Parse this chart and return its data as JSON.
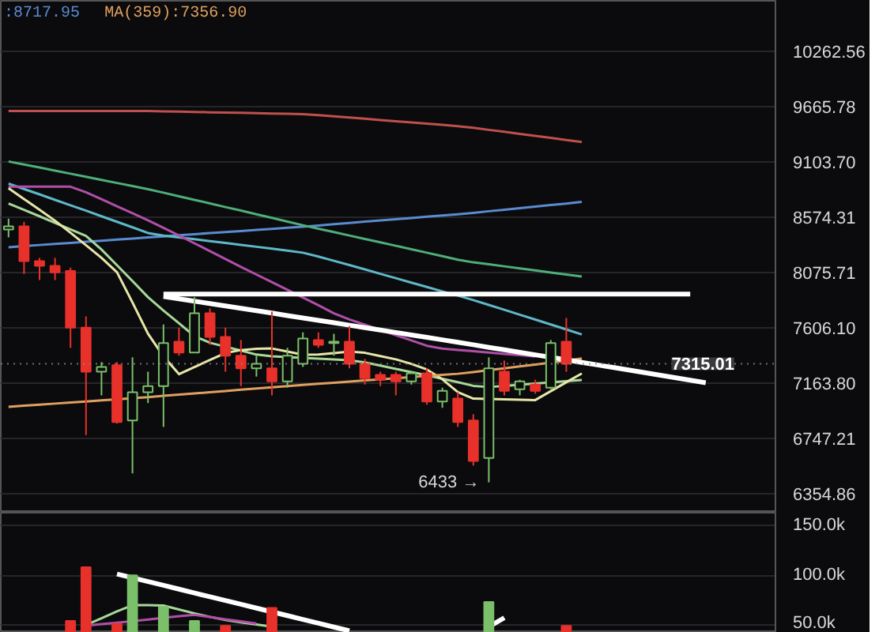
{
  "chart_data": [
    {
      "type": "candlestick",
      "categories": [
        null,
        null,
        null,
        null,
        null,
        null,
        null,
        null,
        null,
        null,
        null,
        null,
        null,
        null,
        null,
        null,
        null,
        null,
        null,
        null,
        null,
        null,
        null,
        null,
        null,
        null,
        null,
        null,
        null,
        null,
        null,
        null,
        null,
        null,
        null,
        null,
        null,
        null,
        null,
        null,
        null,
        null,
        null,
        null,
        null,
        null,
        null,
        null,
        null,
        null
      ],
      "ohlc": [
        [
          8460,
          8560,
          8389,
          8489
        ],
        [
          8489,
          8531,
          8062,
          8176
        ],
        [
          8176,
          8204,
          8009,
          8133
        ],
        [
          8133,
          8204,
          8009,
          8076
        ],
        [
          8089,
          8118,
          7442,
          7606
        ],
        [
          7606,
          7700,
          6771,
          7252
        ],
        [
          7252,
          7328,
          7069,
          7290
        ],
        [
          7303,
          7328,
          6855,
          6867
        ],
        [
          6879,
          7366,
          6496,
          7093
        ],
        [
          7093,
          7252,
          7010,
          7140
        ],
        [
          7140,
          7633,
          6831,
          7480
        ],
        [
          7492,
          7606,
          7379,
          7404
        ],
        [
          7404,
          7861,
          7404,
          7727
        ],
        [
          7727,
          7767,
          7467,
          7530
        ],
        [
          7530,
          7606,
          7252,
          7379
        ],
        [
          7379,
          7505,
          7140,
          7278
        ],
        [
          7278,
          7379,
          7214,
          7315
        ],
        [
          7278,
          7740,
          7069,
          7176
        ],
        [
          7176,
          7442,
          7128,
          7379
        ],
        [
          7315,
          7568,
          7290,
          7518
        ],
        [
          7505,
          7568,
          7442,
          7467
        ],
        [
          7480,
          7556,
          7379,
          7492
        ],
        [
          7492,
          7620,
          7278,
          7315
        ],
        [
          7315,
          7353,
          7152,
          7202
        ],
        [
          7227,
          7252,
          7140,
          7189
        ],
        [
          7227,
          7252,
          7069,
          7176
        ],
        [
          7176,
          7252,
          7152,
          7240
        ],
        [
          7240,
          7278,
          6998,
          7021
        ],
        [
          7021,
          7128,
          6974,
          7104
        ],
        [
          7045,
          7093,
          6831,
          6867
        ],
        [
          6879,
          6926,
          6551,
          6584
        ],
        [
          6605,
          7366,
          6433,
          7278
        ],
        [
          7252,
          7340,
          7069,
          7104
        ],
        [
          7116,
          7189,
          7069,
          7176
        ],
        [
          7152,
          7189,
          7081,
          7104
        ],
        [
          7128,
          7505,
          7116,
          7480
        ],
        [
          7492,
          7687,
          7252,
          7315.01
        ],
        null,
        null,
        null,
        null,
        null,
        null,
        null,
        null,
        null,
        null,
        null,
        null,
        null
      ],
      "colors": [
        "#7bbf6a",
        "#e8312a",
        "#e8312a",
        "#e8312a",
        "#e8312a",
        "#e8312a",
        "#7bbf6a",
        "#e8312a",
        "#7bbf6a",
        "#7bbf6a",
        "#7bbf6a",
        "#e8312a",
        "#7bbf6a",
        "#e8312a",
        "#e8312a",
        "#e8312a",
        "#7bbf6a",
        "#e8312a",
        "#7bbf6a",
        "#7bbf6a",
        "#e8312a",
        "#7bbf6a",
        "#e8312a",
        "#e8312a",
        "#e8312a",
        "#e8312a",
        "#7bbf6a",
        "#e8312a",
        "#7bbf6a",
        "#e8312a",
        "#e8312a",
        "#7bbf6a",
        "#e8312a",
        "#7bbf6a",
        "#e8312a",
        "#7bbf6a",
        "#e8312a",
        null,
        null,
        null,
        null,
        null,
        null,
        null,
        null,
        null,
        null,
        null,
        null,
        null
      ],
      "ylim": [
        6225,
        10838
      ],
      "log": "y",
      "yticks": [
        {
          "value": 6354.86,
          "label": "6354.86"
        },
        {
          "value": 6747.21,
          "label": "6747.21"
        },
        {
          "value": 7163.8,
          "label": "7163.80"
        },
        {
          "value": 7606.1,
          "label": "7606.10"
        },
        {
          "value": 8075.71,
          "label": "8075.71"
        },
        {
          "value": 8574.31,
          "label": "8574.31"
        },
        {
          "value": 9103.7,
          "label": "9103.70"
        },
        {
          "value": 9665.78,
          "label": "9665.78"
        },
        {
          "value": 10262.56,
          "label": "10262.56"
        }
      ],
      "grid": "y",
      "tick_labels": "y",
      "series": [
        {
          "type": "line",
          "color": "#c0504d",
          "values": [
            9618,
            9618,
            9618,
            9618,
            9618,
            9618,
            9618,
            9618,
            9618,
            9618,
            9615,
            9612,
            9609,
            9605,
            9602,
            9599,
            9595,
            9592,
            9589,
            9586,
            9576,
            9563,
            9551,
            9538,
            9525,
            9513,
            9500,
            9487,
            9475,
            9462,
            9445,
            9424,
            9404,
            9383,
            9362,
            9342,
            9321,
            9300,
            null,
            null,
            null,
            null,
            null,
            null,
            null,
            null,
            null,
            null,
            null,
            null
          ]
        },
        {
          "type": "line",
          "name": ":8717.95",
          "color": "#5b8bd0",
          "values": [
            8299,
            8309,
            8319,
            8328,
            8338,
            8348,
            8358,
            8368,
            8377,
            8387,
            8397,
            8407,
            8417,
            8427,
            8437,
            8446,
            8456,
            8466,
            8476,
            8486,
            8497,
            8509,
            8520,
            8532,
            8543,
            8555,
            8566,
            8578,
            8589,
            8600,
            8614,
            8629,
            8643,
            8658,
            8672,
            8687,
            8701,
            8717.95,
            null,
            null,
            null,
            null,
            null,
            null,
            null,
            null,
            null,
            null,
            null,
            null
          ]
        },
        {
          "type": "line",
          "color": "#4fae7a",
          "values": [
            9107,
            9077,
            9047,
            9017,
            8987,
            8957,
            8927,
            8897,
            8867,
            8837,
            8804,
            8770,
            8736,
            8702,
            8668,
            8635,
            8601,
            8567,
            8533,
            8499,
            8467,
            8436,
            8405,
            8374,
            8343,
            8312,
            8281,
            8250,
            8219,
            8187,
            8164,
            8147,
            8129,
            8111,
            8093,
            8075,
            8057,
            8040,
            null,
            null,
            null,
            null,
            null,
            null,
            null,
            null,
            null,
            null,
            null,
            null
          ]
        },
        {
          "type": "line",
          "color": "#5fb8c8",
          "values": [
            8891,
            8839,
            8788,
            8736,
            8685,
            8634,
            8582,
            8531,
            8480,
            8428,
            8404,
            8388,
            8371,
            8354,
            8337,
            8320,
            8303,
            8286,
            8269,
            8250,
            8216,
            8178,
            8140,
            8102,
            8063,
            8025,
            7987,
            7949,
            7911,
            7876,
            7837,
            7796,
            7755,
            7714,
            7674,
            7633,
            7592,
            7551,
            null,
            null,
            null,
            null,
            null,
            null,
            null,
            null,
            null,
            null,
            null,
            null
          ]
        },
        {
          "type": "line",
          "color": "#b04fa8",
          "values": [
            8861,
            8861,
            8861,
            8861,
            8861,
            8808,
            8742,
            8676,
            8610,
            8544,
            8475,
            8405,
            8334,
            8264,
            8194,
            8124,
            8057,
            7991,
            7925,
            7859,
            7793,
            7726,
            7674,
            7631,
            7588,
            7545,
            7502,
            7459,
            7436,
            7425,
            7415,
            7404,
            7394,
            7384,
            7373,
            null,
            7352,
            7342,
            null,
            null,
            null,
            null,
            null,
            null,
            null,
            null,
            null,
            null,
            null,
            null
          ]
        },
        {
          "type": "line",
          "color": "#a8d89a",
          "values": [
            8702,
            8642,
            8582,
            8521,
            8461,
            8401,
            8278,
            8139,
            8001,
            7862,
            7749,
            7643,
            7537,
            7483,
            7451,
            7420,
            7388,
            7375,
            7368,
            7362,
            7355,
            7349,
            7343,
            7325,
            7300,
            7274,
            7249,
            7224,
            7197,
            7170,
            7142,
            7133,
            7142,
            7151,
            7160,
            7169,
            7178,
            7187,
            null,
            null,
            null,
            null,
            null,
            null,
            null,
            null,
            null,
            null,
            null,
            null
          ]
        },
        {
          "type": "line",
          "color": "#e8e6a8",
          "values": [
            8846,
            8744,
            8643,
            8541,
            8430,
            8317,
            8204,
            8077,
            7817,
            7557,
            7374,
            7233,
            7289,
            7345,
            7401,
            7424,
            7434,
            7437,
            7412,
            7387,
            7388,
            7400,
            7412,
            7402,
            7376,
            7350,
            7314,
            7270,
            7193,
            7094,
            7044,
            7041,
            7038,
            7036,
            7033,
            7101,
            7170,
            7238,
            null,
            null,
            null,
            null,
            null,
            null,
            null,
            null,
            null,
            null,
            null,
            null
          ]
        },
        {
          "type": "line",
          "name": "MA(359):7356.90",
          "color": "#e0a060",
          "values": [
            6981,
            6990,
            6998,
            7006,
            7014,
            7022,
            7031,
            7039,
            7047,
            7055,
            7065,
            7074,
            7083,
            7093,
            7102,
            7112,
            7121,
            7130,
            7140,
            7149,
            7158,
            7166,
            7175,
            7184,
            7192,
            7201,
            7210,
            7219,
            7227,
            7236,
            7249,
            7264,
            7279,
            7294,
            7309,
            7324,
            7339,
            7356.9,
            null,
            null,
            null,
            null,
            null,
            null,
            null,
            null,
            null,
            null,
            null,
            null
          ]
        },
        {
          "type": "line",
          "color": "#ffffff",
          "values": [
            null,
            null,
            null,
            null,
            null,
            null,
            null,
            null,
            null,
            null,
            7888,
            7888,
            7888,
            7888,
            7888,
            7888,
            7888,
            7888,
            7888,
            7888,
            7888,
            7888,
            7888,
            7888,
            7888,
            7888,
            7888,
            7888,
            7888,
            7888,
            7888,
            7888,
            7888,
            7888,
            7888,
            7888,
            7888,
            7888,
            7888,
            7888,
            7888,
            7888,
            7888,
            7888,
            7888,
            null,
            null,
            null,
            null,
            null
          ]
        },
        {
          "type": "line",
          "color": "#ffffff",
          "values": [
            null,
            null,
            null,
            null,
            null,
            null,
            null,
            null,
            null,
            null,
            7868,
            7848,
            7828,
            7808,
            7788,
            7768,
            7748,
            7728,
            7707,
            7687,
            7667,
            7647,
            7627,
            7607,
            7587,
            7567,
            7547,
            7527,
            7507,
            7487,
            7467,
            7446,
            7426,
            7406,
            7386,
            7366,
            7346,
            7326,
            7306,
            7286,
            7266,
            7246,
            7226,
            7206,
            7186,
            7166,
            null,
            null,
            null,
            null
          ]
        }
      ],
      "ref_lines": [
        {
          "axis": "y",
          "value": 7315.01,
          "label": "7315.01"
        }
      ],
      "annotations": [
        "6433 →"
      ]
    },
    {
      "type": "bar",
      "categories": [
        null,
        null,
        null,
        null,
        null,
        null,
        null,
        null,
        null,
        null,
        null,
        null,
        null,
        null,
        null,
        null,
        null,
        null,
        null,
        null,
        null,
        null,
        null,
        null,
        null,
        null,
        null,
        null,
        null,
        null,
        null,
        null,
        null,
        null,
        null,
        null,
        null,
        null,
        null,
        null,
        null,
        null,
        null,
        null,
        null,
        null,
        null,
        null,
        null,
        null
      ],
      "values": [
        null,
        null,
        null,
        null,
        54000,
        108000,
        null,
        51000,
        100000,
        null,
        68000,
        null,
        54000,
        null,
        49000,
        null,
        null,
        67000,
        null,
        null,
        null,
        null,
        null,
        null,
        null,
        null,
        null,
        null,
        null,
        null,
        null,
        73000,
        null,
        null,
        null,
        null,
        49000,
        null,
        null,
        null,
        null,
        null,
        null,
        null,
        null,
        null,
        null,
        null,
        null,
        null
      ],
      "colors": [
        null,
        null,
        null,
        null,
        "#e8312a",
        "#e8312a",
        null,
        "#e8312a",
        "#7bbf6a",
        null,
        "#7bbf6a",
        null,
        "#7bbf6a",
        null,
        "#e8312a",
        null,
        null,
        "#e8312a",
        null,
        null,
        null,
        null,
        null,
        null,
        null,
        null,
        null,
        null,
        null,
        null,
        null,
        "#7bbf6a",
        null,
        null,
        null,
        null,
        "#e8312a",
        null,
        null,
        null,
        null,
        null,
        null,
        null,
        null,
        null,
        null,
        null,
        null,
        null
      ],
      "ylim": [
        42000,
        163000
      ],
      "yticks": [
        {
          "value": 50000,
          "label": "50.0k"
        },
        {
          "value": 100000,
          "label": "100.0k"
        },
        {
          "value": 150000,
          "label": "150.0k"
        }
      ],
      "grid": "y",
      "tick_labels": "y",
      "series": [
        {
          "type": "line",
          "color": "#a8d89a",
          "values": [
            null,
            null,
            null,
            null,
            null,
            49900,
            56700,
            63600,
            69800,
            69800,
            69400,
            65500,
            61600,
            58000,
            55000,
            52500,
            50400,
            48200,
            null,
            null,
            null,
            null,
            null,
            null,
            null,
            null,
            null,
            null,
            null,
            null,
            null,
            null,
            null,
            null,
            null,
            null,
            null,
            null,
            null,
            null,
            null,
            null,
            null,
            null,
            null,
            null,
            null,
            null,
            null,
            null
          ]
        },
        {
          "type": "line",
          "color": "#b04fa8",
          "values": [
            null,
            null,
            null,
            null,
            null,
            49200,
            50700,
            52200,
            53700,
            55400,
            57100,
            58800,
            60100,
            57900,
            55600,
            53500,
            51400,
            null,
            null,
            null,
            null,
            null,
            null,
            null,
            null,
            null,
            null,
            null,
            null,
            null,
            null,
            null,
            null,
            null,
            null,
            null,
            null,
            null,
            null,
            null,
            null,
            null,
            null,
            null,
            null,
            null,
            null,
            null,
            null,
            null
          ]
        },
        {
          "type": "line",
          "color": "#ffffff",
          "values": [
            null,
            null,
            null,
            null,
            null,
            null,
            null,
            101200,
            97400,
            93600,
            89800,
            86000,
            82100,
            78300,
            74500,
            70700,
            66900,
            63100,
            59300,
            55500,
            51600,
            47800,
            44000,
            null,
            null,
            null,
            null,
            null,
            null,
            null,
            null,
            null,
            null,
            null,
            null,
            null,
            null,
            null,
            null,
            null,
            null,
            null,
            null,
            null,
            null,
            null,
            null,
            null,
            null,
            null
          ]
        },
        {
          "type": "line",
          "color": "#ffffff",
          "values": [
            null,
            null,
            null,
            null,
            null,
            null,
            null,
            null,
            null,
            null,
            null,
            null,
            null,
            null,
            null,
            null,
            null,
            null,
            null,
            null,
            null,
            null,
            null,
            null,
            null,
            null,
            null,
            null,
            null,
            null,
            null,
            48000,
            57100,
            null,
            null,
            null,
            null,
            null,
            null,
            null,
            null,
            null,
            null,
            null,
            null,
            null,
            null,
            null,
            null,
            null
          ]
        }
      ]
    }
  ]
}
